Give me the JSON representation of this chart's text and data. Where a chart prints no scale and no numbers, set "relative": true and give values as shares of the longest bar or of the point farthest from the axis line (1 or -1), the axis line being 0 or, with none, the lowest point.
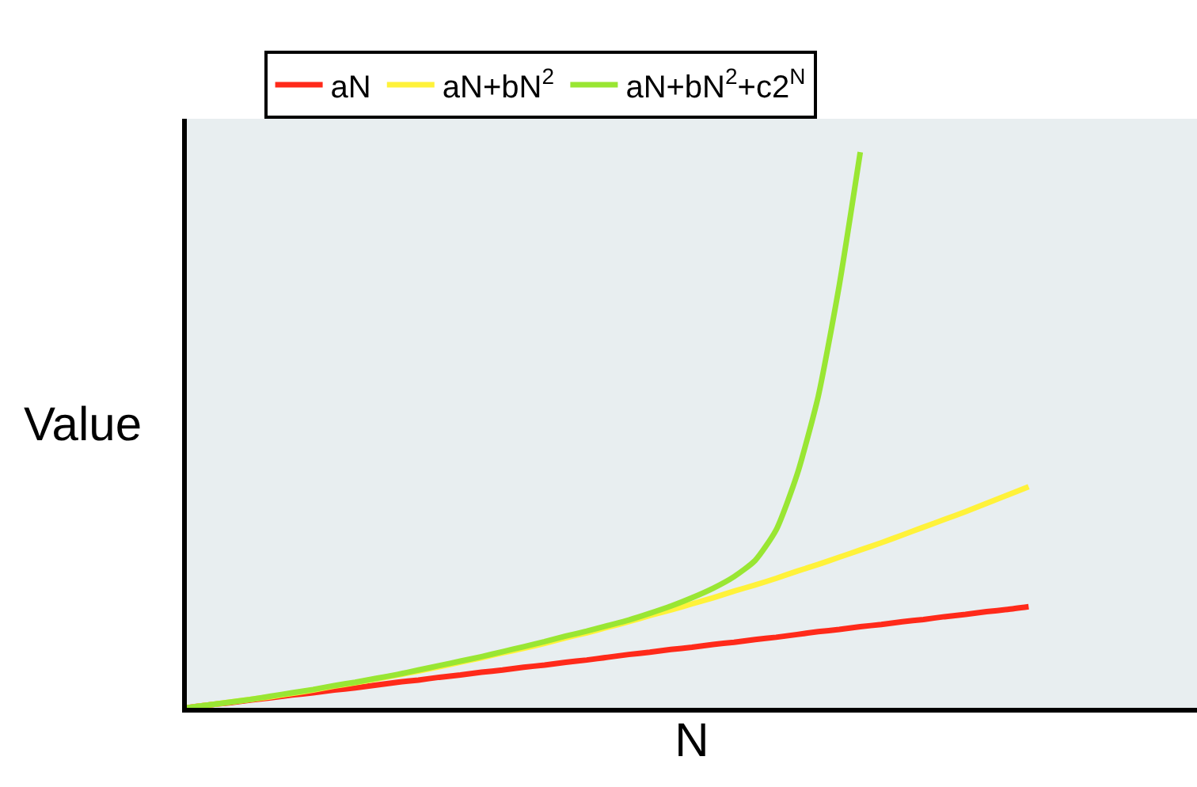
{
  "chart_data": {
    "type": "line",
    "relative": true,
    "xlabel": "N",
    "ylabel": "Value",
    "categories": [
      null,
      null,
      null,
      null,
      null,
      null,
      null,
      null,
      null,
      null,
      null,
      null,
      null,
      null,
      null,
      null,
      null,
      null,
      null,
      null,
      null,
      null,
      null,
      null,
      null,
      null,
      null,
      null,
      null,
      null,
      null,
      null,
      null,
      null,
      null,
      null,
      null,
      null,
      null,
      null,
      null,
      null,
      null,
      null,
      null,
      null,
      null,
      null,
      null
    ],
    "series": [
      {
        "name": "aN",
        "color": "#ff2a1a",
        "values": [
          0,
          0.005,
          0.009,
          0.014,
          0.018,
          0.023,
          0.027,
          0.032,
          0.036,
          0.041,
          0.046,
          0.05,
          0.055,
          0.059,
          0.064,
          0.068,
          0.073,
          0.077,
          0.082,
          0.086,
          0.091,
          0.096,
          0.1,
          0.105,
          0.109,
          0.114,
          0.118,
          0.123,
          0.127,
          0.132,
          0.137,
          0.141,
          0.146,
          0.15,
          0.155,
          0.159,
          0.164,
          0.168,
          0.173,
          0.177,
          0.182,
          null,
          null,
          null,
          null,
          null,
          null,
          null,
          null
        ]
      },
      {
        "name": "aN+bN$^{2}$",
        "color": "#fff23a",
        "values": [
          0,
          0.005,
          0.01,
          0.015,
          0.02,
          0.026,
          0.032,
          0.039,
          0.045,
          0.052,
          0.059,
          0.066,
          0.074,
          0.082,
          0.09,
          0.099,
          0.107,
          0.116,
          0.126,
          0.135,
          0.145,
          0.155,
          0.166,
          0.176,
          0.187,
          0.198,
          0.21,
          0.221,
          0.233,
          0.246,
          0.258,
          0.271,
          0.284,
          0.297,
          0.311,
          0.325,
          0.339,
          0.353,
          0.368,
          0.383,
          0.398,
          null,
          null,
          null,
          null,
          null,
          null,
          null,
          null
        ]
      },
      {
        "name": "aN+bN$^{2}$+c2$^{N}$",
        "color": "#99e633",
        "values": [
          0,
          0.005,
          0.01,
          0.015,
          0.021,
          0.027,
          0.033,
          0.04,
          0.046,
          0.053,
          0.06,
          0.068,
          0.076,
          0.084,
          0.092,
          0.101,
          0.11,
          0.119,
          0.129,
          0.138,
          0.148,
          0.158,
          0.17,
          0.183,
          0.198,
          0.215,
          0.236,
          0.265,
          0.32,
          0.42,
          0.56,
          0.76,
          1.0,
          null,
          null,
          null,
          null,
          null,
          null,
          null,
          null,
          null,
          null,
          null,
          null,
          null,
          null,
          null,
          null
        ]
      }
    ],
    "legend": "top",
    "grid": false,
    "marker": "none",
    "line_style": "solid",
    "tick_labels": false
  }
}
